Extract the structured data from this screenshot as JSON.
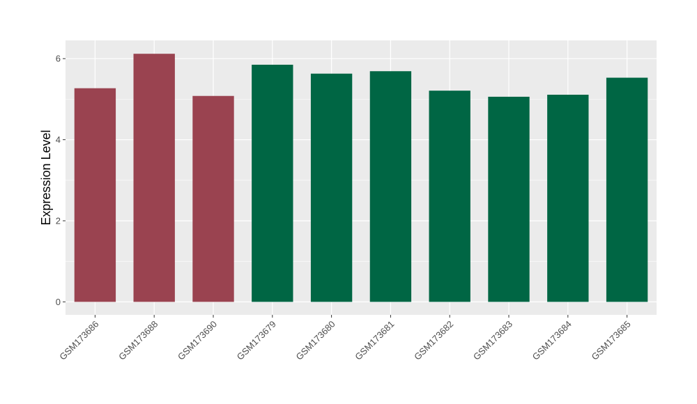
{
  "chart_data": {
    "type": "bar",
    "title": "",
    "xlabel": "",
    "ylabel": "Expression Level",
    "categories": [
      "GSM173686",
      "GSM173688",
      "GSM173690",
      "GSM173679",
      "GSM173680",
      "GSM173681",
      "GSM173682",
      "GSM173683",
      "GSM173684",
      "GSM173685"
    ],
    "values": [
      5.27,
      6.12,
      5.08,
      5.85,
      5.63,
      5.69,
      5.21,
      5.06,
      5.11,
      5.53
    ],
    "bar_colors": [
      "#9a4350",
      "#9a4350",
      "#9a4350",
      "#006644",
      "#006644",
      "#006644",
      "#006644",
      "#006644",
      "#006644",
      "#006644"
    ],
    "ylim": [
      -0.32,
      6.45
    ],
    "yticks": [
      0,
      2,
      4,
      6
    ],
    "grid": true,
    "panel_background": "#ebebeb",
    "grid_color": "#ffffff"
  }
}
